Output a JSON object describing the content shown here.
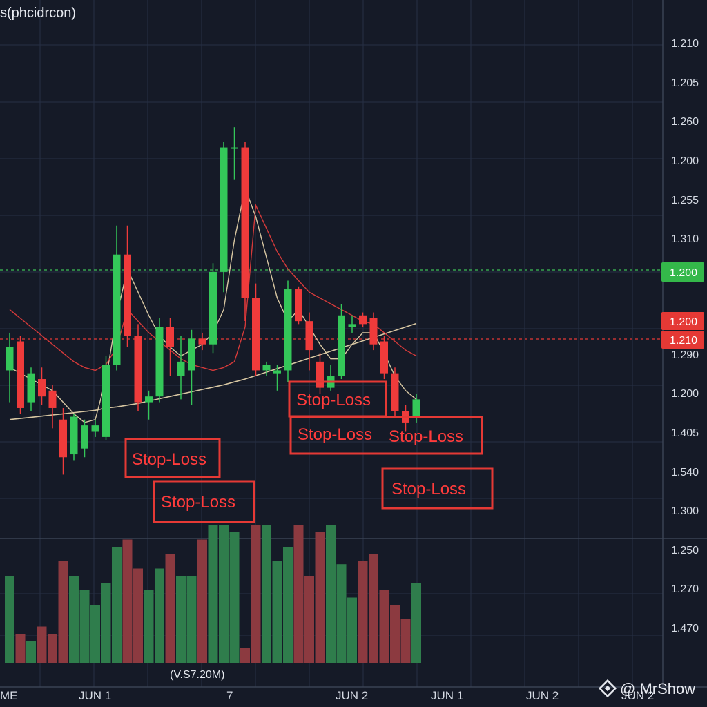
{
  "header": {
    "title": "s(phcidrcon)"
  },
  "watermark": {
    "text": "@ MrShow"
  },
  "colors": {
    "background": "#151a27",
    "up": "#34c759",
    "down": "#ef3b3b",
    "volume_up": "#2f7d4c",
    "volume_down": "#8c3a40",
    "ma_fast": "#d8c7a2",
    "ma_slow": "#d43a3a",
    "annotation": "#ff3b3b",
    "level_green": "#3fbf55",
    "level_red": "#e53935"
  },
  "chart_data": {
    "type": "candlestick",
    "price_axis_labels": [
      "1.210",
      "1.205",
      "1.260",
      "1.200",
      "1.255",
      "1.310",
      "1.290",
      "1.200",
      "1.405",
      "1.540",
      "1.300",
      "1.250",
      "1.270",
      "1.470"
    ],
    "date_axis_labels": [
      "ME",
      "JUN 1",
      "7",
      "JUN 2",
      "JUN 1",
      "JUN 2",
      "JUN 2"
    ],
    "volume_label": "(V.S7.20M)",
    "price_tags": [
      {
        "label": "1.200",
        "color": "green"
      },
      {
        "label": "1.200",
        "color": "red"
      },
      {
        "label": "1.210",
        "color": "red"
      }
    ],
    "annotations": [
      "Stop-Loss",
      "Stop-Loss",
      "Stop-Loss",
      "Stop-Loss",
      "Stop-Loss",
      "Stop-Loss"
    ],
    "candles": [
      {
        "o": 1.2195,
        "h": 1.226,
        "l": 1.214,
        "c": 1.2235
      },
      {
        "o": 1.2245,
        "h": 1.2255,
        "l": 1.212,
        "c": 1.213
      },
      {
        "o": 1.214,
        "h": 1.22,
        "l": 1.2125,
        "c": 1.219
      },
      {
        "o": 1.218,
        "h": 1.22,
        "l": 1.2135,
        "c": 1.215
      },
      {
        "o": 1.216,
        "h": 1.217,
        "l": 1.2095,
        "c": 1.213
      },
      {
        "o": 1.211,
        "h": 1.213,
        "l": 1.2015,
        "c": 1.2045
      },
      {
        "o": 1.205,
        "h": 1.212,
        "l": 1.204,
        "c": 1.2115
      },
      {
        "o": 1.206,
        "h": 1.211,
        "l": 1.2045,
        "c": 1.21
      },
      {
        "o": 1.209,
        "h": 1.211,
        "l": 1.208,
        "c": 1.21
      },
      {
        "o": 1.208,
        "h": 1.222,
        "l": 1.2075,
        "c": 1.2205
      },
      {
        "o": 1.2205,
        "h": 1.2445,
        "l": 1.2195,
        "c": 1.2395
      },
      {
        "o": 1.2395,
        "h": 1.2445,
        "l": 1.2235,
        "c": 1.2255
      },
      {
        "o": 1.2255,
        "h": 1.2275,
        "l": 1.2125,
        "c": 1.214
      },
      {
        "o": 1.214,
        "h": 1.216,
        "l": 1.211,
        "c": 1.215
      },
      {
        "o": 1.215,
        "h": 1.2285,
        "l": 1.214,
        "c": 1.227
      },
      {
        "o": 1.227,
        "h": 1.2285,
        "l": 1.2185,
        "c": 1.2235
      },
      {
        "o": 1.2185,
        "h": 1.2255,
        "l": 1.2145,
        "c": 1.221
      },
      {
        "o": 1.2195,
        "h": 1.2265,
        "l": 1.2135,
        "c": 1.225
      },
      {
        "o": 1.225,
        "h": 1.226,
        "l": 1.223,
        "c": 1.224
      },
      {
        "o": 1.224,
        "h": 1.238,
        "l": 1.2225,
        "c": 1.2365
      },
      {
        "o": 1.2365,
        "h": 1.259,
        "l": 1.233,
        "c": 1.258
      },
      {
        "o": 1.258,
        "h": 1.2615,
        "l": 1.2525,
        "c": 1.258
      },
      {
        "o": 1.258,
        "h": 1.259,
        "l": 1.228,
        "c": 1.232
      },
      {
        "o": 1.232,
        "h": 1.2345,
        "l": 1.2185,
        "c": 1.2195
      },
      {
        "o": 1.2195,
        "h": 1.221,
        "l": 1.2185,
        "c": 1.2205
      },
      {
        "o": 1.219,
        "h": 1.2205,
        "l": 1.216,
        "c": 1.2195
      },
      {
        "o": 1.2195,
        "h": 1.235,
        "l": 1.2175,
        "c": 1.2335
      },
      {
        "o": 1.2335,
        "h": 1.234,
        "l": 1.2275,
        "c": 1.228
      },
      {
        "o": 1.228,
        "h": 1.2295,
        "l": 1.2195,
        "c": 1.223
      },
      {
        "o": 1.221,
        "h": 1.2225,
        "l": 1.2155,
        "c": 1.2165
      },
      {
        "o": 1.2165,
        "h": 1.2205,
        "l": 1.216,
        "c": 1.2185
      },
      {
        "o": 1.2185,
        "h": 1.231,
        "l": 1.218,
        "c": 1.229
      },
      {
        "o": 1.227,
        "h": 1.229,
        "l": 1.226,
        "c": 1.2275
      },
      {
        "o": 1.229,
        "h": 1.2295,
        "l": 1.227,
        "c": 1.2275
      },
      {
        "o": 1.2285,
        "h": 1.2295,
        "l": 1.223,
        "c": 1.224
      },
      {
        "o": 1.2245,
        "h": 1.2255,
        "l": 1.218,
        "c": 1.219
      },
      {
        "o": 1.219,
        "h": 1.22,
        "l": 1.2115,
        "c": 1.2125
      },
      {
        "o": 1.2125,
        "h": 1.2135,
        "l": 1.209,
        "c": 1.2105
      },
      {
        "o": 1.2115,
        "h": 1.2155,
        "l": 1.2105,
        "c": 1.2145
      }
    ],
    "ma_fast": [
      1.22,
      1.219,
      1.218,
      1.217,
      1.216,
      1.214,
      1.212,
      1.2105,
      1.211,
      1.218,
      1.229,
      1.237,
      1.233,
      1.229,
      1.2255,
      1.2235,
      1.222,
      1.223,
      1.224,
      1.226,
      1.23,
      1.242,
      1.251,
      1.246,
      1.239,
      1.232,
      1.228,
      1.23,
      1.227,
      1.224,
      1.2215,
      1.2215,
      1.224,
      1.226,
      1.226,
      1.2225,
      1.2185,
      1.216,
      1.2145
    ],
    "ma_slow": [
      1.23,
      1.2285,
      1.227,
      1.2255,
      1.224,
      1.2225,
      1.221,
      1.22,
      1.2195,
      1.2205,
      1.2235,
      1.23,
      1.228,
      1.226,
      1.2245,
      1.223,
      1.2215,
      1.2205,
      1.22,
      1.2195,
      1.22,
      1.221,
      1.227,
      1.248,
      1.244,
      1.24,
      1.237,
      1.235,
      1.233,
      1.232,
      1.231,
      1.23,
      1.229,
      1.228,
      1.2275,
      1.226,
      1.2245,
      1.223,
      1.222
    ],
    "ma_long": [
      1.211,
      1.2112,
      1.2114,
      1.2116,
      1.2118,
      1.212,
      1.2122,
      1.2124,
      1.2126,
      1.213,
      1.2132,
      1.2135,
      1.2138,
      1.2142,
      1.2146,
      1.215,
      1.2154,
      1.2158,
      1.2162,
      1.2166,
      1.217,
      1.2175,
      1.218,
      1.2186,
      1.2192,
      1.2198,
      1.2204,
      1.221,
      1.2216,
      1.2222,
      1.2228,
      1.2234,
      1.224,
      1.2246,
      1.2252,
      1.2258,
      1.2264,
      1.227,
      1.2276
    ],
    "volume": [
      0.6,
      0.2,
      0.15,
      0.25,
      0.2,
      0.7,
      0.6,
      0.5,
      0.4,
      0.55,
      0.8,
      0.85,
      0.65,
      0.5,
      0.65,
      0.75,
      0.6,
      0.6,
      0.85,
      0.95,
      0.95,
      0.9,
      0.1,
      0.95,
      0.95,
      0.7,
      0.8,
      0.95,
      0.6,
      0.9,
      0.95,
      0.68,
      0.45,
      0.7,
      0.75,
      0.5,
      0.4,
      0.3,
      0.55
    ]
  }
}
